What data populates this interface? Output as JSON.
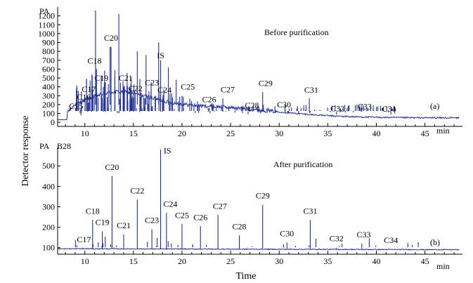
{
  "chart_data": [
    {
      "type": "line",
      "panel": "(a)",
      "title": "Before purification",
      "unit_label": "PA",
      "xlabel": "min",
      "xlim": [
        7.2,
        48.5
      ],
      "ylim": [
        -30,
        1300
      ],
      "yticks": [
        0,
        100,
        200,
        300,
        400,
        500,
        600,
        700,
        800,
        900,
        1000,
        1100,
        1200
      ],
      "xticks": [
        10,
        15,
        20,
        25,
        30,
        35,
        40,
        45
      ],
      "peaks": [
        {
          "label": "C15",
          "x": 9.6,
          "y": 80,
          "label_x": 9.1,
          "label_y": 130
        },
        {
          "label": "C16",
          "x": 10.3,
          "y": 140,
          "label_x": 9.9,
          "label_y": 230
        },
        {
          "label": "C17",
          "x": 10.7,
          "y": 280,
          "label_x": 10.4,
          "label_y": 320
        },
        {
          "label": "C18",
          "x": 11.2,
          "y": 600,
          "label_x": 11.0,
          "label_y": 640
        },
        {
          "label": "C19",
          "x": 11.9,
          "y": 400,
          "label_x": 11.7,
          "label_y": 445
        },
        {
          "label": "C20",
          "x": 12.7,
          "y": 850,
          "label_x": 12.7,
          "label_y": 895
        },
        {
          "label": "C21",
          "x": 14.0,
          "y": 400,
          "label_x": 14.2,
          "label_y": 445
        },
        {
          "label": "C22",
          "x": 15.0,
          "y": 280,
          "label_x": 15.2,
          "label_y": 325
        },
        {
          "label": "C23",
          "x": 16.6,
          "y": 350,
          "label_x": 16.9,
          "label_y": 395
        },
        {
          "label": "C24",
          "x": 18.0,
          "y": 270,
          "label_x": 18.2,
          "label_y": 310
        },
        {
          "label": "IS",
          "x": 17.8,
          "y": 700,
          "label_x": 17.8,
          "label_y": 700
        },
        {
          "label": "C25",
          "x": 20.0,
          "y": 300,
          "label_x": 20.6,
          "label_y": 345
        },
        {
          "label": "C26",
          "x": 22.7,
          "y": 160,
          "label_x": 22.8,
          "label_y": 205
        },
        {
          "label": "C27",
          "x": 24.2,
          "y": 270,
          "label_x": 24.7,
          "label_y": 315
        },
        {
          "label": "C28",
          "x": 26.8,
          "y": 90,
          "label_x": 27.2,
          "label_y": 135
        },
        {
          "label": "C29",
          "x": 28.3,
          "y": 340,
          "label_x": 28.6,
          "label_y": 385
        },
        {
          "label": "C30",
          "x": 30.6,
          "y": 200,
          "label_x": 30.5,
          "label_y": 145
        },
        {
          "label": "C31",
          "x": 33.1,
          "y": 270,
          "label_x": 33.3,
          "label_y": 310
        },
        {
          "label": "C32",
          "x": 35.9,
          "y": 90,
          "label_x": 36.0,
          "label_y": 100
        },
        {
          "label": "C33",
          "x": 38.5,
          "y": 140,
          "label_x": 38.8,
          "label_y": 125
        },
        {
          "label": "C34",
          "x": 41.5,
          "y": 90,
          "label_x": 41.3,
          "label_y": 95
        }
      ]
    },
    {
      "type": "line",
      "panel": "(b)",
      "title": "After purification",
      "unit_label": "PA",
      "sample_label": "B28",
      "xlabel": "min",
      "xlim": [
        7.2,
        48.5
      ],
      "ylim": [
        75,
        590
      ],
      "yticks": [
        100,
        200,
        300,
        400,
        500
      ],
      "xticks": [
        10,
        15,
        20,
        25,
        30,
        35,
        40,
        45
      ],
      "peaks": [
        {
          "label": "C17",
          "x": 9.8,
          "y": 100,
          "label_x": 9.9,
          "label_y": 117
        },
        {
          "label": "C18",
          "x": 10.8,
          "y": 235,
          "label_x": 10.8,
          "label_y": 255
        },
        {
          "label": "C19",
          "x": 11.8,
          "y": 180,
          "label_x": 11.8,
          "label_y": 200
        },
        {
          "label": "C20",
          "x": 12.8,
          "y": 450,
          "label_x": 12.8,
          "label_y": 470
        },
        {
          "label": "C21",
          "x": 14.0,
          "y": 165,
          "label_x": 14.0,
          "label_y": 185
        },
        {
          "label": "C22",
          "x": 15.4,
          "y": 335,
          "label_x": 15.4,
          "label_y": 355
        },
        {
          "label": "C23",
          "x": 16.9,
          "y": 190,
          "label_x": 16.9,
          "label_y": 210
        },
        {
          "label": "IS",
          "x": 17.8,
          "y": 580,
          "label_x": 18.5,
          "label_y": 550
        },
        {
          "label": "C24",
          "x": 18.4,
          "y": 270,
          "label_x": 18.8,
          "label_y": 290
        },
        {
          "label": "C25",
          "x": 20.0,
          "y": 215,
          "label_x": 20.0,
          "label_y": 235
        },
        {
          "label": "C26",
          "x": 21.9,
          "y": 205,
          "label_x": 21.9,
          "label_y": 225
        },
        {
          "label": "C27",
          "x": 23.7,
          "y": 260,
          "label_x": 23.9,
          "label_y": 280
        },
        {
          "label": "C28",
          "x": 25.9,
          "y": 160,
          "label_x": 25.9,
          "label_y": 180
        },
        {
          "label": "C29",
          "x": 28.3,
          "y": 310,
          "label_x": 28.3,
          "label_y": 330
        },
        {
          "label": "C30",
          "x": 30.8,
          "y": 125,
          "label_x": 30.8,
          "label_y": 145
        },
        {
          "label": "C31",
          "x": 33.2,
          "y": 235,
          "label_x": 33.2,
          "label_y": 255
        },
        {
          "label": "C32",
          "x": 35.9,
          "y": 100,
          "label_x": 35.9,
          "label_y": 122
        },
        {
          "label": "C33",
          "x": 38.5,
          "y": 120,
          "label_x": 38.7,
          "label_y": 140
        },
        {
          "label": "C34",
          "x": 41.5,
          "y": 95,
          "label_x": 41.5,
          "label_y": 112
        }
      ]
    }
  ],
  "figure": {
    "ylabel": "Detector response",
    "xlabel": "Time",
    "colors": {
      "trace": "#1f2f9a",
      "axis": "#000000"
    }
  }
}
